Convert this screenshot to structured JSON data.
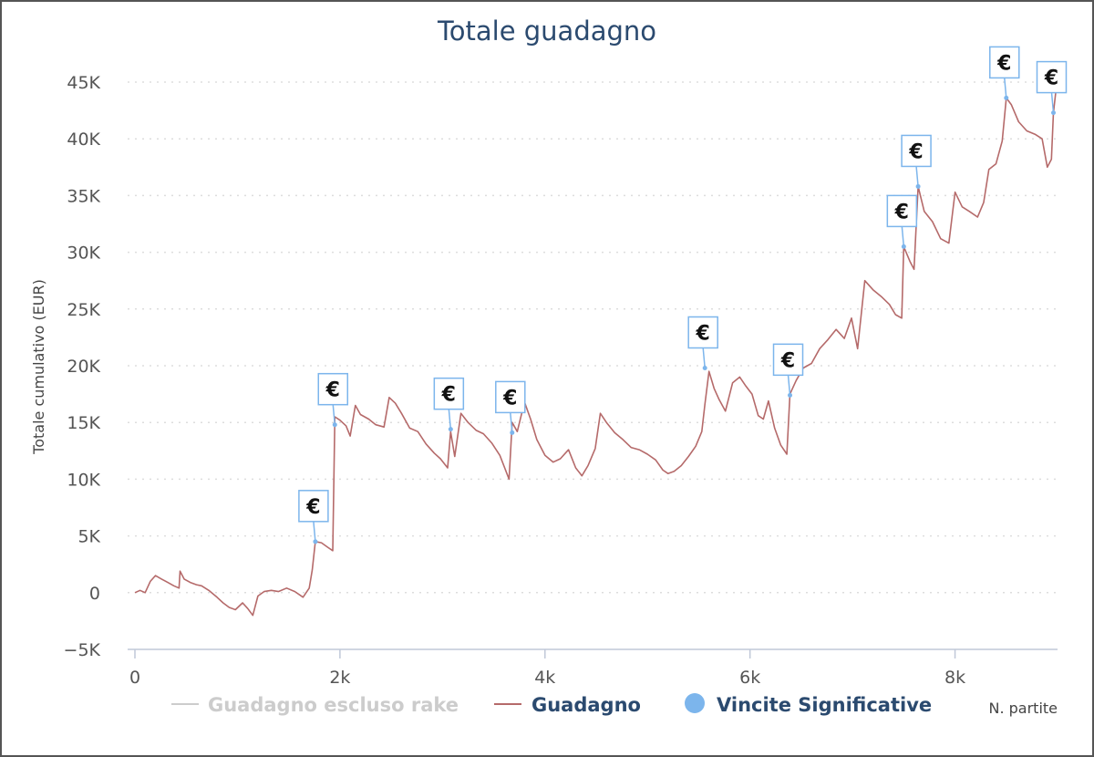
{
  "chart_data": {
    "type": "line",
    "title": "Totale guadagno",
    "ylabel": "Totale cumulativo (EUR)",
    "xlabel": "N. partite",
    "xlim": [
      0,
      9000
    ],
    "ylim": [
      -5000,
      45000
    ],
    "x_ticks": [
      0,
      2000,
      4000,
      6000,
      8000
    ],
    "x_tick_labels": [
      "0",
      "2k",
      "4k",
      "6k",
      "8k"
    ],
    "y_ticks": [
      -5000,
      0,
      5000,
      10000,
      15000,
      20000,
      25000,
      30000,
      35000,
      40000,
      45000
    ],
    "y_tick_labels": [
      "−5K",
      "0",
      "5K",
      "10K",
      "15K",
      "20K",
      "25K",
      "30K",
      "35K",
      "40K",
      "45K"
    ],
    "grid": true,
    "legend_position": "bottom",
    "colors": {
      "excluding_rake": "#cccccc",
      "profit": "#b56a6a",
      "wins": "#7cb5ec",
      "title": "#2b4a6f"
    },
    "series": [
      {
        "name": "Guadagno escluso rake",
        "color": "#cccccc",
        "hidden": true,
        "points": []
      },
      {
        "name": "Guadagno",
        "color": "#b56a6a",
        "points": [
          [
            0,
            0
          ],
          [
            50,
            200
          ],
          [
            100,
            0
          ],
          [
            150,
            1000
          ],
          [
            200,
            1500
          ],
          [
            260,
            1200
          ],
          [
            320,
            900
          ],
          [
            380,
            600
          ],
          [
            430,
            400
          ],
          [
            440,
            1900
          ],
          [
            480,
            1200
          ],
          [
            540,
            900
          ],
          [
            600,
            700
          ],
          [
            650,
            600
          ],
          [
            720,
            200
          ],
          [
            800,
            -400
          ],
          [
            860,
            -900
          ],
          [
            920,
            -1300
          ],
          [
            980,
            -1500
          ],
          [
            1050,
            -900
          ],
          [
            1100,
            -1400
          ],
          [
            1150,
            -2000
          ],
          [
            1200,
            -300
          ],
          [
            1260,
            100
          ],
          [
            1330,
            200
          ],
          [
            1400,
            100
          ],
          [
            1480,
            400
          ],
          [
            1560,
            100
          ],
          [
            1640,
            -400
          ],
          [
            1700,
            400
          ],
          [
            1730,
            2000
          ],
          [
            1760,
            4500
          ],
          [
            1820,
            4400
          ],
          [
            1880,
            4000
          ],
          [
            1930,
            3700
          ],
          [
            1950,
            15500
          ],
          [
            2000,
            15200
          ],
          [
            2060,
            14700
          ],
          [
            2100,
            13800
          ],
          [
            2150,
            16500
          ],
          [
            2200,
            15700
          ],
          [
            2280,
            15300
          ],
          [
            2350,
            14800
          ],
          [
            2430,
            14600
          ],
          [
            2480,
            17200
          ],
          [
            2540,
            16700
          ],
          [
            2600,
            15800
          ],
          [
            2680,
            14500
          ],
          [
            2760,
            14200
          ],
          [
            2840,
            13100
          ],
          [
            2920,
            12300
          ],
          [
            2980,
            11800
          ],
          [
            3050,
            11000
          ],
          [
            3080,
            14200
          ],
          [
            3120,
            12000
          ],
          [
            3180,
            15800
          ],
          [
            3250,
            15000
          ],
          [
            3330,
            14300
          ],
          [
            3400,
            14000
          ],
          [
            3480,
            13200
          ],
          [
            3560,
            12100
          ],
          [
            3650,
            10000
          ],
          [
            3680,
            15000
          ],
          [
            3730,
            14200
          ],
          [
            3800,
            16800
          ],
          [
            3860,
            15300
          ],
          [
            3920,
            13500
          ],
          [
            4000,
            12100
          ],
          [
            4080,
            11500
          ],
          [
            4150,
            11800
          ],
          [
            4230,
            12600
          ],
          [
            4300,
            11000
          ],
          [
            4360,
            10300
          ],
          [
            4420,
            11200
          ],
          [
            4490,
            12700
          ],
          [
            4540,
            15800
          ],
          [
            4600,
            15000
          ],
          [
            4680,
            14100
          ],
          [
            4760,
            13500
          ],
          [
            4840,
            12800
          ],
          [
            4920,
            12600
          ],
          [
            5000,
            12200
          ],
          [
            5080,
            11700
          ],
          [
            5150,
            10800
          ],
          [
            5200,
            10500
          ],
          [
            5260,
            10700
          ],
          [
            5330,
            11200
          ],
          [
            5400,
            12000
          ],
          [
            5470,
            12900
          ],
          [
            5530,
            14200
          ],
          [
            5560,
            16600
          ],
          [
            5600,
            19500
          ],
          [
            5650,
            18000
          ],
          [
            5700,
            17000
          ],
          [
            5760,
            16000
          ],
          [
            5830,
            18500
          ],
          [
            5900,
            19000
          ],
          [
            5960,
            18200
          ],
          [
            6020,
            17500
          ],
          [
            6080,
            15600
          ],
          [
            6130,
            15300
          ],
          [
            6180,
            16900
          ],
          [
            6240,
            14500
          ],
          [
            6300,
            13000
          ],
          [
            6360,
            12200
          ],
          [
            6390,
            17500
          ],
          [
            6450,
            18700
          ],
          [
            6520,
            19800
          ],
          [
            6600,
            20200
          ],
          [
            6680,
            21500
          ],
          [
            6760,
            22300
          ],
          [
            6840,
            23200
          ],
          [
            6920,
            22400
          ],
          [
            6990,
            24200
          ],
          [
            7050,
            21500
          ],
          [
            7120,
            27500
          ],
          [
            7200,
            26700
          ],
          [
            7280,
            26100
          ],
          [
            7360,
            25400
          ],
          [
            7420,
            24500
          ],
          [
            7480,
            24200
          ],
          [
            7500,
            30500
          ],
          [
            7560,
            29200
          ],
          [
            7600,
            28500
          ],
          [
            7640,
            35800
          ],
          [
            7700,
            33600
          ],
          [
            7780,
            32700
          ],
          [
            7860,
            31200
          ],
          [
            7940,
            30800
          ],
          [
            8000,
            35300
          ],
          [
            8070,
            34000
          ],
          [
            8140,
            33600
          ],
          [
            8220,
            33100
          ],
          [
            8280,
            34400
          ],
          [
            8330,
            37300
          ],
          [
            8400,
            37800
          ],
          [
            8460,
            39800
          ],
          [
            8500,
            43600
          ],
          [
            8550,
            43000
          ],
          [
            8620,
            41500
          ],
          [
            8700,
            40700
          ],
          [
            8780,
            40400
          ],
          [
            8850,
            40000
          ],
          [
            8900,
            37500
          ],
          [
            8940,
            38200
          ],
          [
            8960,
            42300
          ],
          [
            9000,
            45500
          ]
        ]
      },
      {
        "name": "Vincite Significative",
        "color": "#7cb5ec",
        "type": "flags",
        "points": [
          [
            1760,
            4500
          ],
          [
            1950,
            14800
          ],
          [
            3080,
            14400
          ],
          [
            3680,
            14100
          ],
          [
            5560,
            19800
          ],
          [
            6390,
            17400
          ],
          [
            7500,
            30500
          ],
          [
            7640,
            35800
          ],
          [
            8500,
            43600
          ],
          [
            8960,
            42300
          ]
        ],
        "flag_label": "€"
      }
    ]
  }
}
